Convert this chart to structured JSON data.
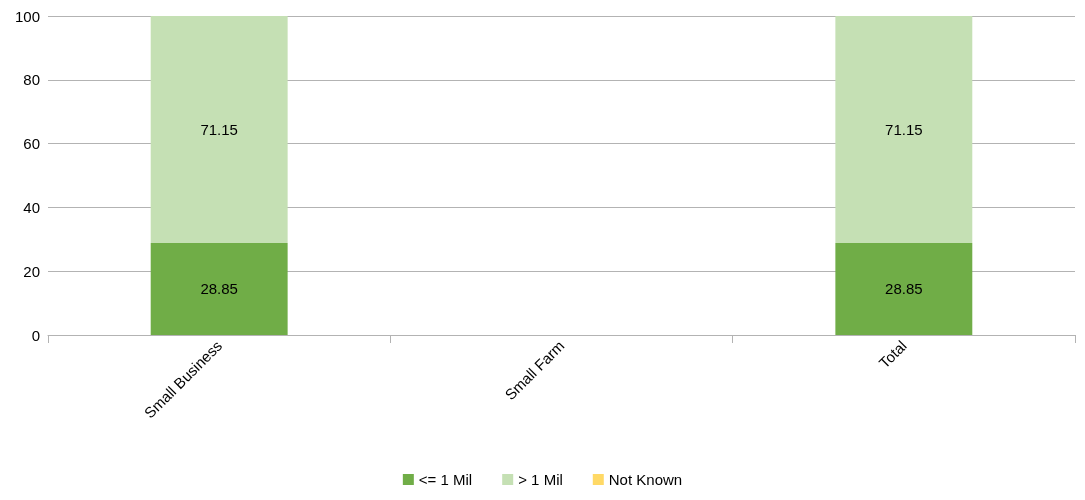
{
  "chart_data": {
    "type": "bar",
    "stacked": true,
    "categories": [
      "Small Business",
      "Small Farm",
      "Total"
    ],
    "series": [
      {
        "name": "<= 1 Mil",
        "color": "#70ad47",
        "values": [
          28.85,
          null,
          28.85
        ]
      },
      {
        "name": "> 1 Mil",
        "color": "#c5e0b4",
        "values": [
          71.15,
          null,
          71.15
        ]
      },
      {
        "name": "Not Known",
        "color": "#ffd966",
        "values": [
          null,
          null,
          null
        ]
      }
    ],
    "ylim": [
      0,
      100
    ],
    "yticks": [
      0,
      20,
      40,
      60,
      80,
      100
    ],
    "grid": "y",
    "legend": "bottom",
    "data_labels": true
  }
}
